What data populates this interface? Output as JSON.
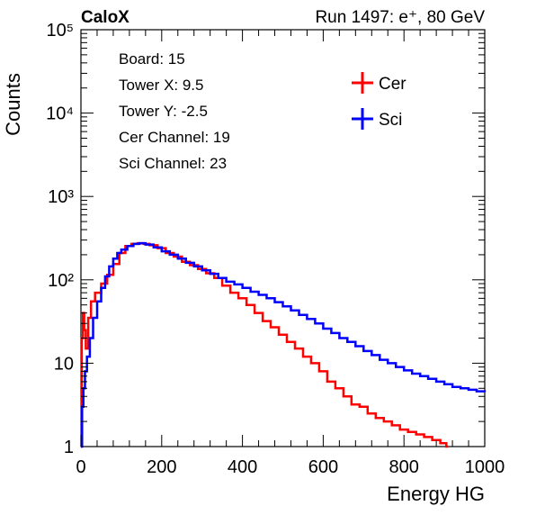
{
  "chart_data": {
    "type": "line",
    "header_left": "CaloX",
    "header_right": "Run 1497: e⁺, 80 GeV",
    "xlabel": "Energy HG",
    "ylabel": "Counts",
    "xlim": [
      0,
      1000
    ],
    "ylim": [
      1,
      100000
    ],
    "yscale": "log",
    "grid": false,
    "legend_position": "top-right",
    "x_ticks": [
      {
        "value": 0,
        "label": "0"
      },
      {
        "value": 200,
        "label": "200"
      },
      {
        "value": 400,
        "label": "400"
      },
      {
        "value": 600,
        "label": "600"
      },
      {
        "value": 800,
        "label": "800"
      },
      {
        "value": 1000,
        "label": "1000"
      }
    ],
    "y_ticks": [
      {
        "value": 1,
        "label": "1"
      },
      {
        "value": 10,
        "label": "10"
      },
      {
        "value": 100,
        "label": "10²"
      },
      {
        "value": 1000,
        "label": "10³"
      },
      {
        "value": 10000,
        "label": "10⁴"
      },
      {
        "value": 100000,
        "label": "10⁵"
      }
    ],
    "info_lines": [
      "Board: 15",
      "Tower X: 9.5",
      "Tower Y: -2.5",
      "Cer Channel: 19",
      "Sci Channel: 23"
    ],
    "series": [
      {
        "name": "Cer",
        "color": "#ff0000",
        "points": [
          [
            0,
            1
          ],
          [
            2,
            20
          ],
          [
            5,
            40
          ],
          [
            8,
            25
          ],
          [
            12,
            15
          ],
          [
            18,
            35
          ],
          [
            25,
            55
          ],
          [
            35,
            70
          ],
          [
            50,
            90
          ],
          [
            65,
            115
          ],
          [
            80,
            155
          ],
          [
            95,
            210
          ],
          [
            110,
            255
          ],
          [
            125,
            270
          ],
          [
            140,
            275
          ],
          [
            155,
            270
          ],
          [
            170,
            260
          ],
          [
            190,
            240
          ],
          [
            210,
            210
          ],
          [
            230,
            190
          ],
          [
            250,
            165
          ],
          [
            270,
            150
          ],
          [
            290,
            135
          ],
          [
            310,
            120
          ],
          [
            330,
            105
          ],
          [
            350,
            85
          ],
          [
            370,
            70
          ],
          [
            390,
            60
          ],
          [
            410,
            50
          ],
          [
            430,
            40
          ],
          [
            450,
            32
          ],
          [
            470,
            27
          ],
          [
            490,
            22
          ],
          [
            510,
            18
          ],
          [
            530,
            15
          ],
          [
            550,
            12
          ],
          [
            570,
            10
          ],
          [
            590,
            8
          ],
          [
            610,
            6
          ],
          [
            630,
            5
          ],
          [
            650,
            4
          ],
          [
            670,
            3.2
          ],
          [
            690,
            3
          ],
          [
            710,
            2.5
          ],
          [
            730,
            2.2
          ],
          [
            750,
            2
          ],
          [
            770,
            1.8
          ],
          [
            790,
            1.6
          ],
          [
            810,
            1.5
          ],
          [
            830,
            1.4
          ],
          [
            850,
            1.3
          ],
          [
            870,
            1.2
          ],
          [
            890,
            1.1
          ],
          [
            905,
            1
          ]
        ]
      },
      {
        "name": "Sci",
        "color": "#0000ff",
        "points": [
          [
            0,
            1
          ],
          [
            3,
            3
          ],
          [
            6,
            5
          ],
          [
            10,
            8
          ],
          [
            15,
            12
          ],
          [
            22,
            20
          ],
          [
            30,
            35
          ],
          [
            40,
            55
          ],
          [
            50,
            80
          ],
          [
            60,
            110
          ],
          [
            70,
            145
          ],
          [
            80,
            180
          ],
          [
            90,
            210
          ],
          [
            100,
            230
          ],
          [
            115,
            255
          ],
          [
            130,
            270
          ],
          [
            145,
            275
          ],
          [
            160,
            265
          ],
          [
            180,
            245
          ],
          [
            200,
            220
          ],
          [
            220,
            200
          ],
          [
            240,
            180
          ],
          [
            260,
            160
          ],
          [
            280,
            145
          ],
          [
            300,
            130
          ],
          [
            320,
            118
          ],
          [
            340,
            105
          ],
          [
            360,
            95
          ],
          [
            380,
            88
          ],
          [
            400,
            80
          ],
          [
            420,
            72
          ],
          [
            440,
            66
          ],
          [
            460,
            60
          ],
          [
            480,
            54
          ],
          [
            500,
            48
          ],
          [
            520,
            43
          ],
          [
            540,
            38
          ],
          [
            560,
            34
          ],
          [
            580,
            30
          ],
          [
            600,
            26
          ],
          [
            620,
            23
          ],
          [
            640,
            20
          ],
          [
            660,
            18
          ],
          [
            680,
            16
          ],
          [
            700,
            14
          ],
          [
            720,
            12.5
          ],
          [
            740,
            11
          ],
          [
            760,
            10
          ],
          [
            780,
            9
          ],
          [
            800,
            8.2
          ],
          [
            820,
            7.5
          ],
          [
            840,
            7
          ],
          [
            860,
            6.5
          ],
          [
            880,
            6
          ],
          [
            900,
            5.6
          ],
          [
            920,
            5.2
          ],
          [
            940,
            5
          ],
          [
            960,
            4.8
          ],
          [
            980,
            4.6
          ],
          [
            1000,
            4.5
          ]
        ]
      }
    ]
  }
}
